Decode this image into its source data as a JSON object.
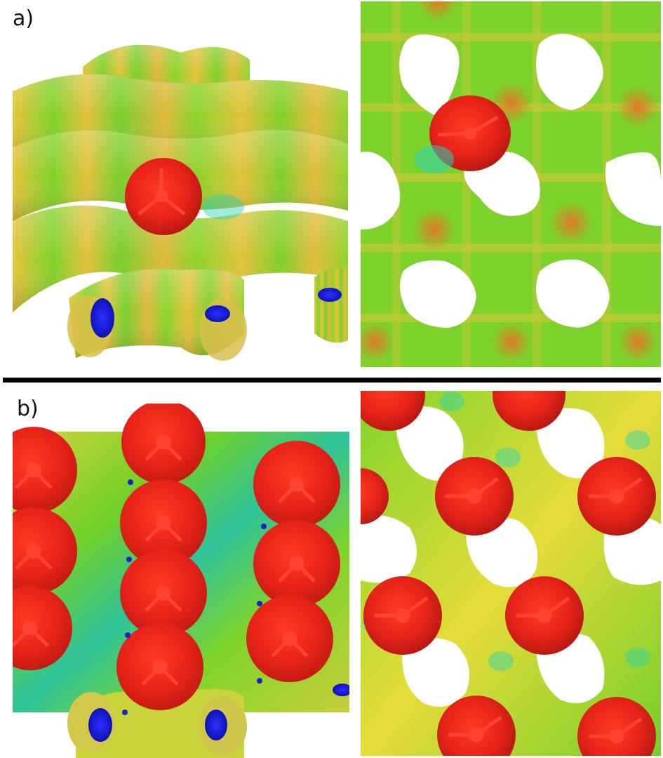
{
  "panels": [
    {
      "id": "a",
      "label": "a)"
    },
    {
      "id": "b",
      "label": "b)"
    }
  ],
  "colors": {
    "surface_green": "#5fcf2a",
    "surface_yellow": "#e7d43a",
    "surface_orange": "#e08a2a",
    "atom_red": "#e3261c",
    "cyan_region": "#2bd3b4",
    "blue_cap": "#1a1fe0",
    "divider": "#000000"
  }
}
